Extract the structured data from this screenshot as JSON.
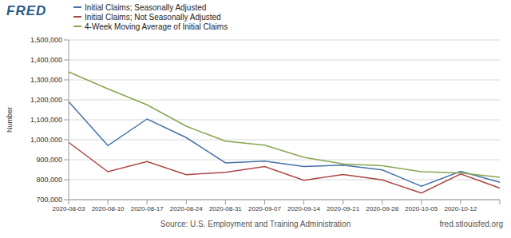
{
  "chart_data": {
    "type": "line",
    "logo": "FRED",
    "y_label": "Number",
    "source": "Source: U.S. Employment and Training Administration",
    "site": "fred.stlouisfed.org",
    "categories": [
      "2020-08-03",
      "2020-08-10",
      "2020-08-17",
      "2020-08-24",
      "2020-08-31",
      "2020-09-07",
      "2020-09-14",
      "2020-09-21",
      "2020-09-28",
      "2020-10-05",
      "2020-10-12",
      null
    ],
    "series": [
      {
        "name": "Initial Claims; Seasonally Adjusted",
        "color": "#4572a7",
        "values": [
          1191000,
          971000,
          1104000,
          1011000,
          884000,
          893000,
          866000,
          873000,
          849000,
          767000,
          842000,
          787000
        ]
      },
      {
        "name": "Initial Claims; Not Seasonally Adjusted",
        "color": "#aa4643",
        "values": [
          987000,
          840000,
          891000,
          825000,
          837000,
          866000,
          797000,
          826000,
          799000,
          733000,
          829000,
          758000
        ]
      },
      {
        "name": "4-Week Moving Average of Initial Claims",
        "color": "#89a54e",
        "values": [
          1340000,
          1255000,
          1175000,
          1068000,
          993000,
          973000,
          912000,
          879000,
          870000,
          840000,
          834000,
          812000
        ]
      }
    ],
    "ylim": [
      700000,
      1500000
    ],
    "yticks": [
      {
        "value": 700000,
        "label": "700,000"
      },
      {
        "value": 800000,
        "label": "800,000"
      },
      {
        "value": 900000,
        "label": "900,000"
      },
      {
        "value": 1000000,
        "label": "1,000,000"
      },
      {
        "value": 1100000,
        "label": "1,100,000"
      },
      {
        "value": 1200000,
        "label": "1,200,000"
      },
      {
        "value": 1300000,
        "label": "1,300,000"
      },
      {
        "value": 1400000,
        "label": "1,400,000"
      },
      {
        "value": 1500000,
        "label": "1,500,000"
      }
    ],
    "grid": true,
    "legend": "top-left",
    "marker": "none",
    "line_style": "solid"
  }
}
